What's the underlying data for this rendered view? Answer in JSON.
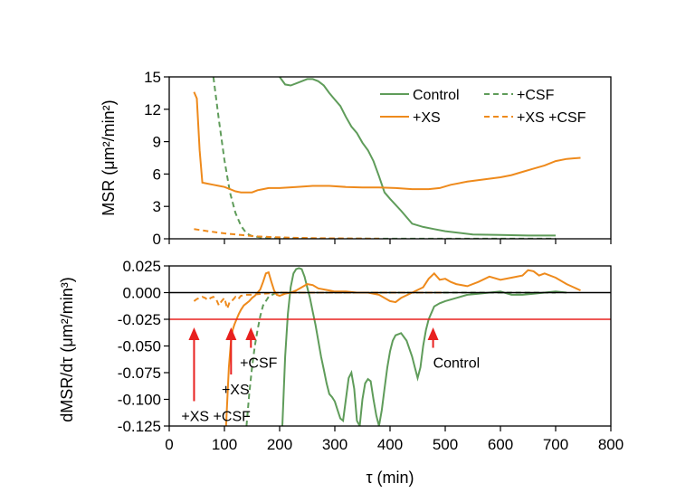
{
  "colors": {
    "control": "#5f9c5a",
    "xs": "#ee8a1c",
    "red": "#e8211f",
    "axis": "#000000"
  },
  "chart_data": [
    {
      "type": "line",
      "ylabel": "MSR (μm²/min²)",
      "xlim": [
        0,
        800
      ],
      "ylim": [
        0,
        15
      ],
      "yticks": [
        0,
        3,
        6,
        9,
        12,
        15
      ],
      "legend": {
        "placement": "top-right",
        "entries": [
          "Control",
          "+CSF",
          "+XS",
          "+XS +CSF"
        ]
      },
      "series": [
        {
          "name": "Control",
          "color": "control",
          "dash": false,
          "x": [
            200,
            210,
            220,
            230,
            240,
            250,
            260,
            270,
            280,
            290,
            300,
            310,
            320,
            330,
            340,
            350,
            360,
            370,
            380,
            390,
            400,
            420,
            440,
            460,
            480,
            500,
            550,
            600,
            650,
            700
          ],
          "y": [
            15,
            14.3,
            14.2,
            14.4,
            14.6,
            14.8,
            14.8,
            14.6,
            14.2,
            13.5,
            12.9,
            12.3,
            11.3,
            10.4,
            9.8,
            8.9,
            8.2,
            7.2,
            5.8,
            4.3,
            3.7,
            2.6,
            1.4,
            1.1,
            0.9,
            0.7,
            0.4,
            0.35,
            0.3,
            0.3
          ]
        },
        {
          "name": "+CSF",
          "color": "control",
          "dash": true,
          "x": [
            80,
            90,
            100,
            110,
            120,
            130,
            140,
            150,
            170,
            200,
            250,
            300,
            350,
            400,
            450,
            500,
            550,
            600,
            650,
            700
          ],
          "y": [
            15,
            11,
            7.3,
            4.3,
            2.4,
            1.2,
            0.5,
            0.25,
            0.1,
            0.05,
            0.03,
            0.02,
            0.02,
            0.01,
            0.01,
            0.01,
            0.01,
            0.01,
            0.01,
            0.01
          ]
        },
        {
          "name": "+XS",
          "color": "xs",
          "dash": false,
          "x": [
            45,
            50,
            55,
            60,
            70,
            80,
            90,
            100,
            110,
            120,
            130,
            140,
            150,
            160,
            170,
            180,
            200,
            230,
            260,
            290,
            320,
            350,
            380,
            410,
            440,
            470,
            490,
            510,
            540,
            570,
            600,
            620,
            640,
            660,
            680,
            700,
            720,
            745
          ],
          "y": [
            13.6,
            13,
            8.2,
            5.2,
            5.1,
            5,
            4.9,
            4.8,
            4.6,
            4.4,
            4.3,
            4.3,
            4.3,
            4.5,
            4.6,
            4.7,
            4.7,
            4.8,
            4.9,
            4.9,
            4.8,
            4.75,
            4.75,
            4.7,
            4.6,
            4.6,
            4.7,
            5,
            5.3,
            5.5,
            5.7,
            5.9,
            6.2,
            6.5,
            6.8,
            7.2,
            7.4,
            7.5
          ]
        },
        {
          "name": "+XS +CSF",
          "color": "xs",
          "dash": true,
          "x": [
            45,
            70,
            100,
            130,
            160,
            190,
            220,
            260,
            300,
            350,
            380
          ],
          "y": [
            0.9,
            0.7,
            0.5,
            0.35,
            0.22,
            0.15,
            0.1,
            0.06,
            0.04,
            0.02,
            0.01
          ]
        }
      ]
    },
    {
      "type": "line",
      "xlabel": "τ (min)",
      "ylabel": "dMSR/dτ (μm²/min³)",
      "xlim": [
        0,
        800
      ],
      "ylim": [
        -0.125,
        0.025
      ],
      "xticks": [
        0,
        100,
        200,
        300,
        400,
        500,
        600,
        700,
        800
      ],
      "yticks": [
        0.025,
        0.0,
        -0.025,
        -0.05,
        -0.075,
        -0.1,
        -0.125
      ],
      "ytick_labels": [
        "0.025",
        "0.000",
        "-0.025",
        "-0.050",
        "-0.075",
        "-0.100",
        "-0.125"
      ],
      "hlines": [
        {
          "y": 0.0,
          "color": "axis"
        },
        {
          "y": -0.025,
          "color": "red"
        }
      ],
      "series": [
        {
          "name": "Control",
          "color": "control",
          "dash": false,
          "x": [
            205,
            210,
            215,
            220,
            225,
            230,
            235,
            240,
            245,
            250,
            255,
            260,
            265,
            270,
            275,
            280,
            285,
            290,
            295,
            300,
            305,
            310,
            315,
            320,
            325,
            330,
            335,
            340,
            345,
            350,
            355,
            360,
            365,
            370,
            375,
            380,
            385,
            390,
            395,
            400,
            405,
            410,
            420,
            430,
            440,
            445,
            450,
            455,
            460,
            465,
            470,
            480,
            490,
            500,
            520,
            540,
            560,
            580,
            600,
            620,
            640,
            660,
            680,
            700,
            720
          ],
          "y": [
            -0.125,
            -0.06,
            -0.02,
            0.005,
            0.018,
            0.022,
            0.023,
            0.022,
            0.015,
            0.005,
            -0.005,
            -0.018,
            -0.03,
            -0.045,
            -0.06,
            -0.072,
            -0.085,
            -0.095,
            -0.098,
            -0.102,
            -0.11,
            -0.118,
            -0.12,
            -0.1,
            -0.08,
            -0.075,
            -0.09,
            -0.12,
            -0.125,
            -0.1,
            -0.085,
            -0.081,
            -0.083,
            -0.1,
            -0.115,
            -0.125,
            -0.11,
            -0.09,
            -0.07,
            -0.055,
            -0.045,
            -0.04,
            -0.038,
            -0.045,
            -0.06,
            -0.07,
            -0.08,
            -0.07,
            -0.05,
            -0.035,
            -0.025,
            -0.013,
            -0.01,
            -0.008,
            -0.005,
            -0.002,
            -0.001,
            0.0,
            0.001,
            -0.002,
            -0.002,
            -0.001,
            0.0,
            0.001,
            0.0
          ]
        },
        {
          "name": "+CSF",
          "color": "control",
          "dash": true,
          "x": [
            140,
            145,
            150,
            155,
            160,
            165,
            170,
            180,
            190,
            200,
            220,
            250,
            300,
            400,
            500,
            600,
            700
          ],
          "y": [
            -0.125,
            -0.095,
            -0.07,
            -0.05,
            -0.035,
            -0.022,
            -0.012,
            -0.004,
            -0.001,
            0.0,
            0.0,
            0.0,
            0.0,
            0.0,
            0.0,
            0.0,
            0.0
          ]
        },
        {
          "name": "+XS",
          "color": "xs",
          "dash": false,
          "x": [
            103,
            108,
            112,
            115,
            118,
            122,
            126,
            130,
            135,
            140,
            145,
            150,
            155,
            160,
            165,
            170,
            175,
            180,
            185,
            190,
            195,
            200,
            210,
            220,
            230,
            240,
            250,
            260,
            270,
            280,
            290,
            300,
            320,
            340,
            360,
            380,
            400,
            410,
            420,
            440,
            460,
            470,
            480,
            490,
            500,
            510,
            520,
            540,
            560,
            580,
            600,
            620,
            640,
            650,
            660,
            670,
            680,
            700,
            720,
            745
          ],
          "y": [
            -0.125,
            -0.07,
            -0.045,
            -0.035,
            -0.03,
            -0.025,
            -0.02,
            -0.016,
            -0.012,
            -0.01,
            -0.008,
            -0.005,
            -0.003,
            0.0,
            0.003,
            0.01,
            0.018,
            0.019,
            0.01,
            0.002,
            -0.002,
            -0.003,
            -0.001,
            0.0,
            0.002,
            0.005,
            0.008,
            0.007,
            0.004,
            0.003,
            0.002,
            0.001,
            0.001,
            0.0,
            0.0,
            -0.002,
            -0.008,
            -0.009,
            -0.005,
            0.0,
            0.005,
            0.013,
            0.018,
            0.012,
            0.013,
            0.01,
            0.008,
            0.006,
            0.01,
            0.015,
            0.012,
            0.014,
            0.016,
            0.021,
            0.02,
            0.016,
            0.018,
            0.014,
            0.008,
            0.002
          ]
        },
        {
          "name": "+XS +CSF",
          "color": "xs",
          "dash": true,
          "x": [
            45,
            50,
            55,
            60,
            65,
            70,
            75,
            80,
            85,
            90,
            95,
            100,
            105,
            110,
            115,
            120,
            125,
            130,
            140,
            150,
            170,
            200,
            250,
            300,
            400,
            500
          ],
          "y": [
            -0.008,
            -0.006,
            -0.005,
            -0.004,
            -0.005,
            -0.007,
            -0.005,
            -0.004,
            -0.006,
            -0.012,
            -0.008,
            -0.005,
            -0.015,
            -0.008,
            -0.007,
            -0.004,
            -0.006,
            -0.003,
            -0.002,
            -0.002,
            -0.001,
            0.0,
            0.0,
            0.0,
            0.0,
            0.0
          ]
        }
      ],
      "annotations": [
        {
          "text": "+XS +CSF",
          "arrow_x": 45,
          "label_x": 22,
          "label_y": -0.1085
        },
        {
          "text": "+XS",
          "arrow_x": 112,
          "label_x": 95,
          "label_y": -0.0835
        },
        {
          "text": "+CSF",
          "arrow_x": 148,
          "label_x": 128,
          "label_y": -0.0585
        },
        {
          "text": "Control",
          "arrow_x": 478,
          "label_x": 478,
          "label_y": -0.0585
        }
      ]
    }
  ]
}
